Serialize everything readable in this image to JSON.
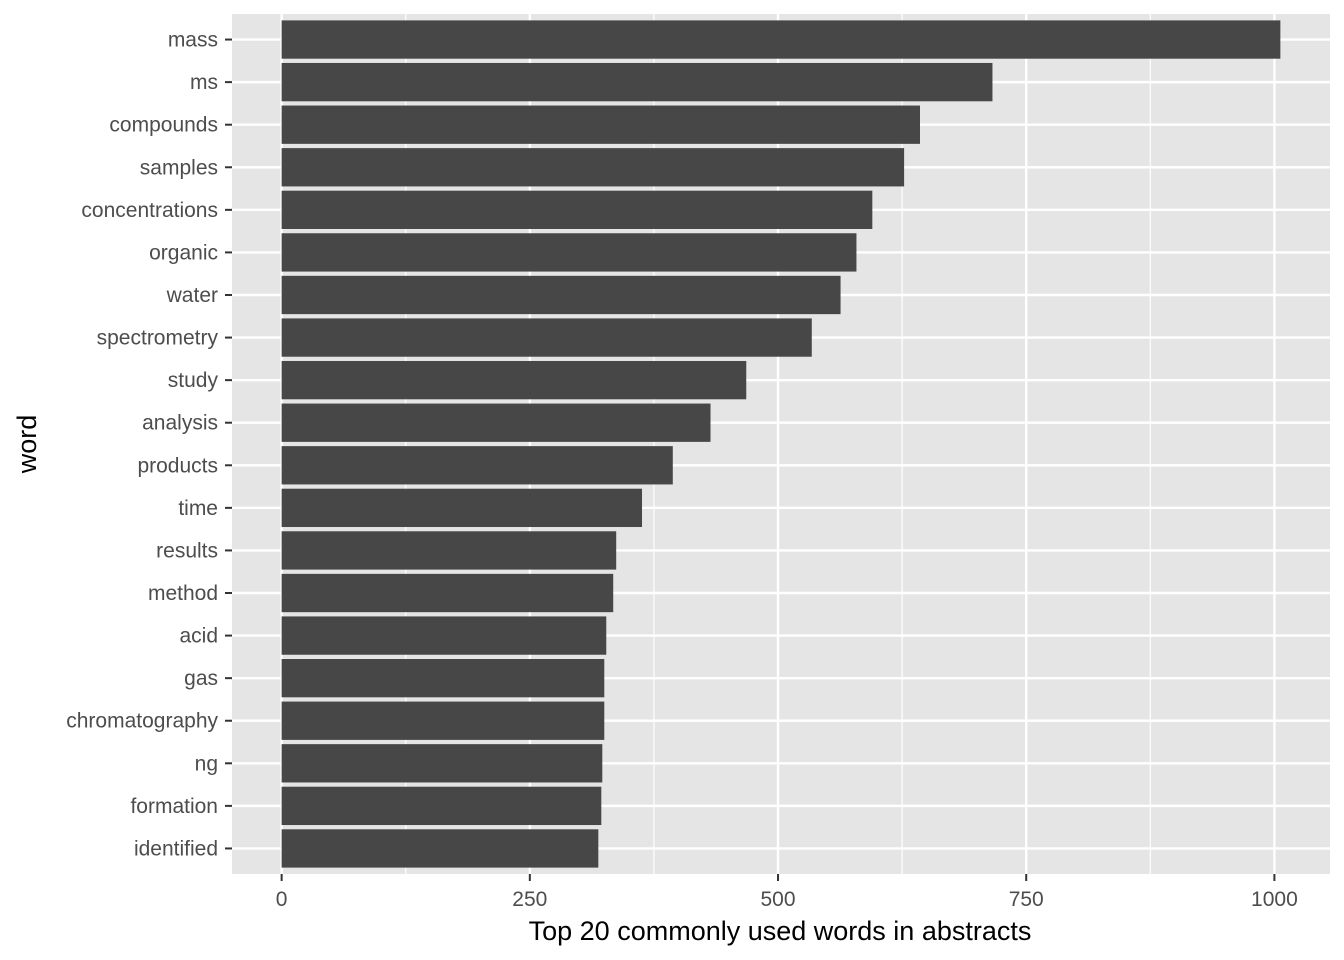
{
  "chart_data": {
    "type": "bar",
    "orientation": "horizontal",
    "categories": [
      "mass",
      "ms",
      "compounds",
      "samples",
      "concentrations",
      "organic",
      "water",
      "spectrometry",
      "study",
      "analysis",
      "products",
      "time",
      "results",
      "method",
      "acid",
      "gas",
      "chromatography",
      "ng",
      "formation",
      "identified"
    ],
    "values": [
      1006,
      716,
      643,
      627,
      595,
      579,
      563,
      534,
      468,
      432,
      394,
      363,
      337,
      334,
      327,
      325,
      325,
      323,
      322,
      319
    ],
    "xlabel": "Top 20 commonly used words in abstracts",
    "ylabel": "word",
    "xlim": [
      -50,
      1056
    ],
    "xticks": [
      0,
      250,
      500,
      750,
      1000
    ],
    "xtick_labels": [
      "0",
      "250",
      "500",
      "750",
      "1000"
    ],
    "grid": true,
    "colors": {
      "bar": "#474747",
      "panel": "#e5e5e5",
      "grid": "#ffffff"
    }
  }
}
